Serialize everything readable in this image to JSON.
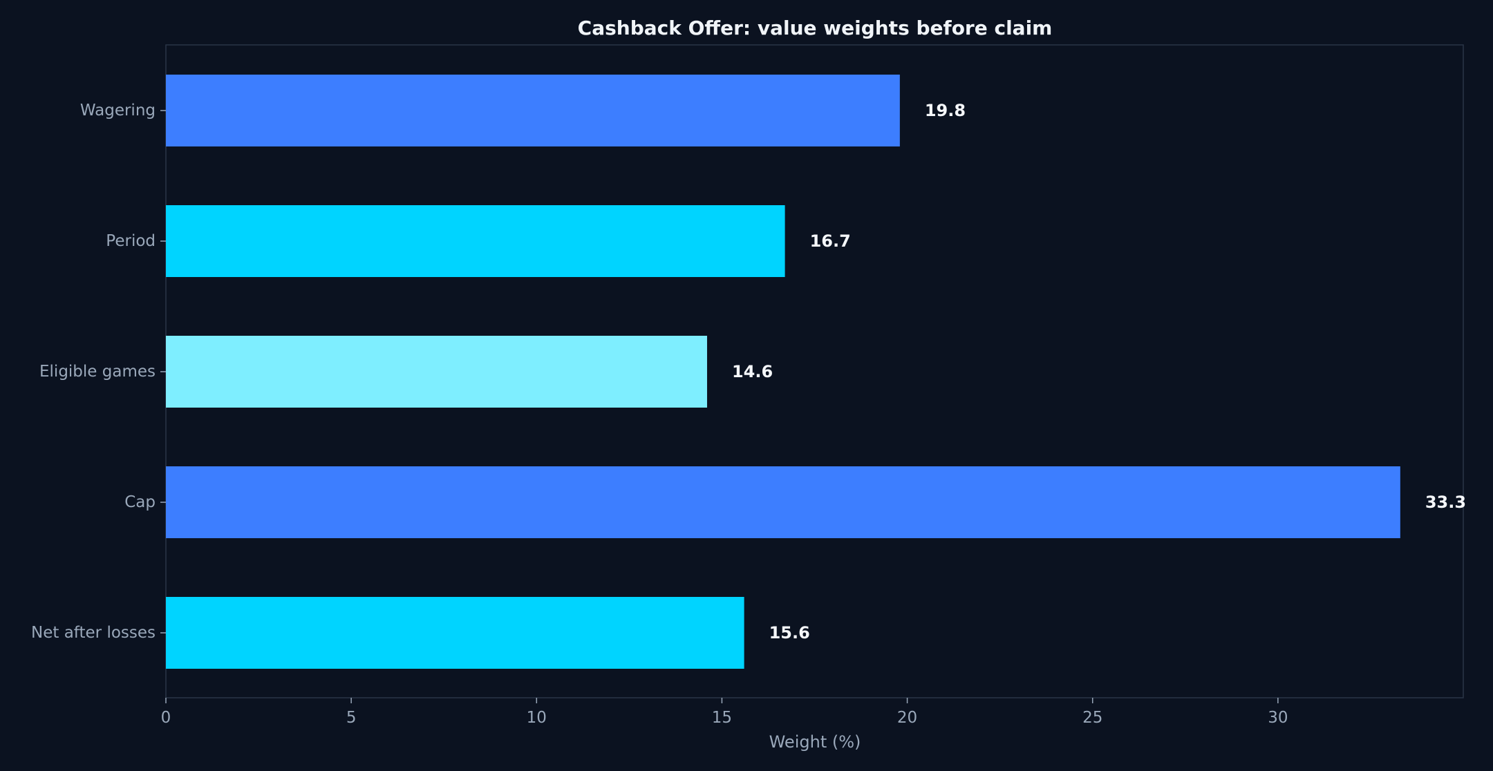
{
  "chart_data": {
    "type": "bar",
    "orientation": "horizontal",
    "title": "Cashback Offer: value weights before claim",
    "xlabel": "Weight (%)",
    "ylabel": "",
    "categories": [
      "Wagering",
      "Period",
      "Eligible games",
      "Cap",
      "Net after losses"
    ],
    "values": [
      19.8,
      16.7,
      14.6,
      33.3,
      15.6
    ],
    "value_labels": [
      "19.8",
      "16.7",
      "14.6",
      "33.3",
      "15.6"
    ],
    "bar_colors": [
      "#3d7eff",
      "#00d4ff",
      "#7eeeff",
      "#3d7eff",
      "#00d4ff"
    ],
    "xlim": [
      0,
      35
    ],
    "xticks": [
      0,
      5,
      10,
      15,
      20,
      25,
      30
    ],
    "xtick_labels": [
      "0",
      "5",
      "10",
      "15",
      "20",
      "25",
      "30"
    ],
    "grid": false,
    "legend": "none"
  },
  "colors": {
    "background": "#0b1220",
    "axes_frame": "#2a3447",
    "tick_text": "#9aa8ba",
    "title_text": "#f0f4f8",
    "value_text": "#f5f7fa"
  }
}
